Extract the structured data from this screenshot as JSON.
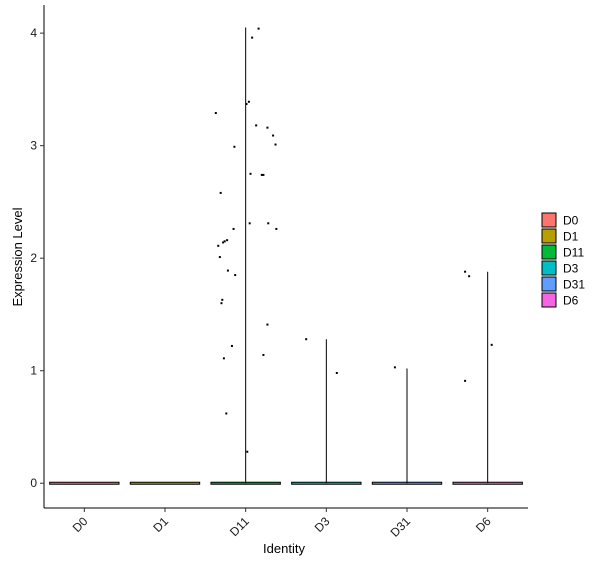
{
  "chart_data": {
    "type": "violin",
    "xlabel": "Identity",
    "ylabel": "Expression Level",
    "categories": [
      "D0",
      "D1",
      "D11",
      "D3",
      "D31",
      "D6"
    ],
    "colors": [
      "#F8766D",
      "#B79F00",
      "#00BA38",
      "#00BFC4",
      "#619CFF",
      "#F564E3"
    ],
    "ylim": [
      -0.22,
      4.25
    ],
    "yticks": [
      0,
      1,
      2,
      3,
      4
    ],
    "max_values": [
      0,
      0,
      4.05,
      1.28,
      1.02,
      1.88
    ],
    "points": [
      [],
      [],
      [
        [
          -0.37,
          3.29
        ],
        [
          -0.34,
          2.11
        ],
        [
          -0.32,
          2.01
        ],
        [
          -0.31,
          2.58
        ],
        [
          -0.3,
          1.6
        ],
        [
          -0.29,
          1.63
        ],
        [
          -0.28,
          2.14
        ],
        [
          -0.27,
          1.11
        ],
        [
          -0.26,
          2.15
        ],
        [
          -0.24,
          0.62
        ],
        [
          -0.23,
          2.16
        ],
        [
          -0.22,
          1.89
        ],
        [
          -0.17,
          1.22
        ],
        [
          -0.15,
          2.26
        ],
        [
          -0.14,
          2.99
        ],
        [
          -0.13,
          1.85
        ],
        [
          0.02,
          0.28
        ],
        [
          0.01,
          3.37
        ],
        [
          0.04,
          3.39
        ],
        [
          0.05,
          2.31
        ],
        [
          0.06,
          2.75
        ],
        [
          0.08,
          3.96
        ],
        [
          0.13,
          3.18
        ],
        [
          0.16,
          4.04
        ],
        [
          0.2,
          2.74
        ],
        [
          0.22,
          2.74
        ],
        [
          0.22,
          1.14
        ],
        [
          0.27,
          1.41
        ],
        [
          0.28,
          2.31
        ],
        [
          0.27,
          3.16
        ],
        [
          0.34,
          3.09
        ],
        [
          0.37,
          3.01
        ],
        [
          0.38,
          2.26
        ]
      ],
      [
        [
          -0.25,
          1.28
        ],
        [
          0.13,
          0.98
        ]
      ],
      [
        [
          -0.15,
          1.03
        ]
      ],
      [
        [
          -0.28,
          0.91
        ],
        [
          -0.28,
          1.88
        ],
        [
          -0.23,
          1.84
        ],
        [
          0.05,
          1.23
        ]
      ]
    ],
    "legend_position": "right"
  }
}
